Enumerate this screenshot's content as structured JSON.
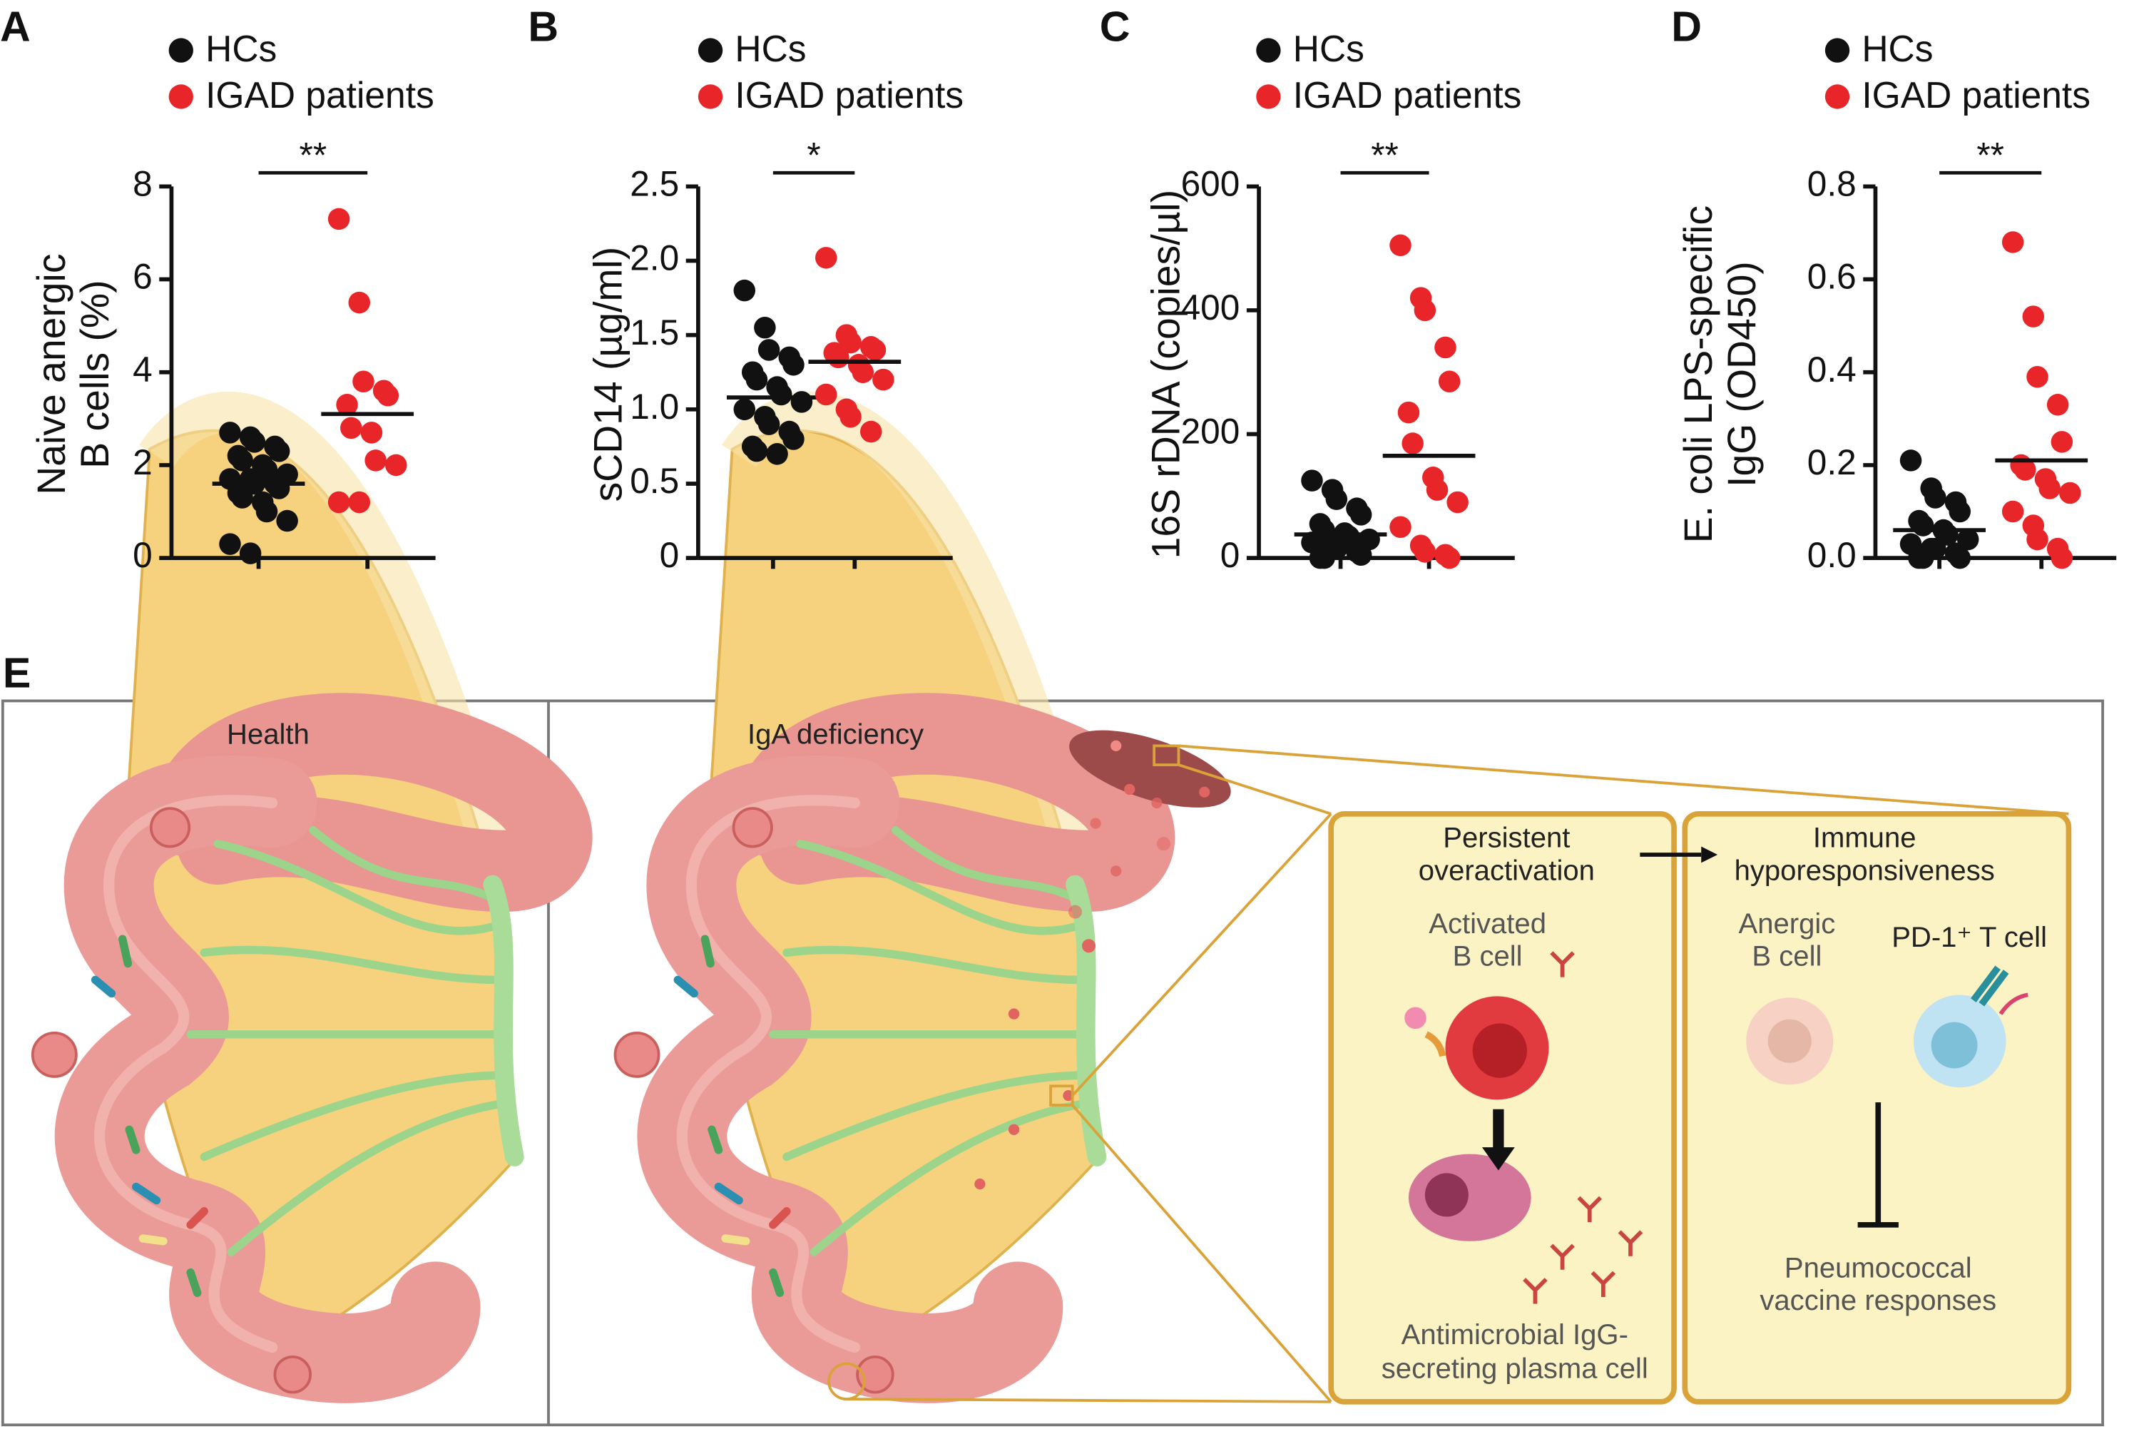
{
  "chart_data": [
    {
      "type": "dot",
      "label": "A",
      "ylabel": [
        "Naive anergic",
        "B cells (%)"
      ],
      "significance": "**",
      "ylim": [
        0,
        8
      ],
      "yticks": [
        0,
        2,
        4,
        6,
        8
      ],
      "series": [
        {
          "name": "HCs",
          "color": "#111111",
          "mean": 1.6,
          "values": [
            2.7,
            2.6,
            2.5,
            2.4,
            2.3,
            2.2,
            2.1,
            2.0,
            1.9,
            1.8,
            1.7,
            1.7,
            1.6,
            1.6,
            1.5,
            1.4,
            1.3,
            1.2,
            1.0,
            0.8,
            0.3,
            0.1
          ]
        },
        {
          "name": "IGAD patients",
          "color": "#e8262a",
          "mean": 3.1,
          "values": [
            7.3,
            5.5,
            3.8,
            3.6,
            3.5,
            3.3,
            2.8,
            2.7,
            2.1,
            2.0,
            1.2,
            1.2
          ]
        }
      ]
    },
    {
      "type": "dot",
      "label": "B",
      "ylabel": [
        "sCD14 (µg/ml)"
      ],
      "significance": "*",
      "ylim": [
        0,
        2.5
      ],
      "yticks": [
        0,
        0.5,
        {
          "value": 1,
          "label": "1.0"
        },
        1.5,
        {
          "value": 2,
          "label": "2.0"
        },
        2.5
      ],
      "series": [
        {
          "name": "HCs",
          "color": "#111111",
          "mean": 1.08,
          "values": [
            1.8,
            1.55,
            1.4,
            1.35,
            1.3,
            1.25,
            1.2,
            1.15,
            1.1,
            1.05,
            1.0,
            0.95,
            0.9,
            0.85,
            0.8,
            0.75,
            0.72,
            0.7
          ]
        },
        {
          "name": "IGAD patients",
          "color": "#e8262a",
          "mean": 1.32,
          "values": [
            2.02,
            1.5,
            1.45,
            1.42,
            1.4,
            1.38,
            1.35,
            1.3,
            1.25,
            1.2,
            1.1,
            1.0,
            0.95,
            0.85
          ]
        }
      ]
    },
    {
      "type": "dot",
      "label": "C",
      "ylabel": [
        "16S rDNA (copies/µl)"
      ],
      "significance": "**",
      "ylim": [
        0,
        600
      ],
      "yticks": [
        0,
        200,
        400,
        600
      ],
      "series": [
        {
          "name": "HCs",
          "color": "#111111",
          "mean": 38,
          "values": [
            125,
            110,
            95,
            80,
            70,
            55,
            45,
            40,
            35,
            30,
            25,
            20,
            15,
            10,
            5,
            0,
            0
          ]
        },
        {
          "name": "IGAD patients",
          "color": "#e8262a",
          "mean": 165,
          "values": [
            505,
            420,
            400,
            340,
            285,
            235,
            185,
            130,
            110,
            90,
            50,
            20,
            10,
            5,
            0
          ]
        }
      ]
    },
    {
      "type": "dot",
      "label": "D",
      "ylabel": [
        "E. coli LPS-specific",
        "IgG (OD450)"
      ],
      "significance": "**",
      "ylim": [
        0,
        0.8
      ],
      "yticks": [
        {
          "value": 0,
          "label": "0.0"
        },
        0.2,
        0.4,
        0.6,
        0.8
      ],
      "series": [
        {
          "name": "HCs",
          "color": "#111111",
          "mean": 0.06,
          "values": [
            0.21,
            0.15,
            0.13,
            0.12,
            0.1,
            0.08,
            0.07,
            0.06,
            0.05,
            0.04,
            0.03,
            0.02,
            0.02,
            0.01,
            0.0,
            0.0,
            0.0
          ]
        },
        {
          "name": "IGAD patients",
          "color": "#e8262a",
          "mean": 0.21,
          "values": [
            0.68,
            0.52,
            0.39,
            0.33,
            0.25,
            0.2,
            0.19,
            0.17,
            0.15,
            0.14,
            0.1,
            0.07,
            0.04,
            0.02,
            0.0
          ]
        }
      ]
    }
  ],
  "diagram": {
    "label": "E",
    "left_title": "Health",
    "right_title": "IgA deficiency",
    "box1": {
      "title": [
        "Persistent",
        "overactivation"
      ],
      "cell": [
        "Activated",
        "B cell"
      ],
      "result": [
        "Antimicrobial IgG-",
        "secreting plasma cell"
      ]
    },
    "box2": {
      "title": [
        "Immune",
        "hyporesponsiveness"
      ],
      "cell1": [
        "Anergic",
        "B cell"
      ],
      "cell2": "PD-1⁺ T cell",
      "result": [
        "Pneumococcal",
        "vaccine responses"
      ]
    }
  }
}
